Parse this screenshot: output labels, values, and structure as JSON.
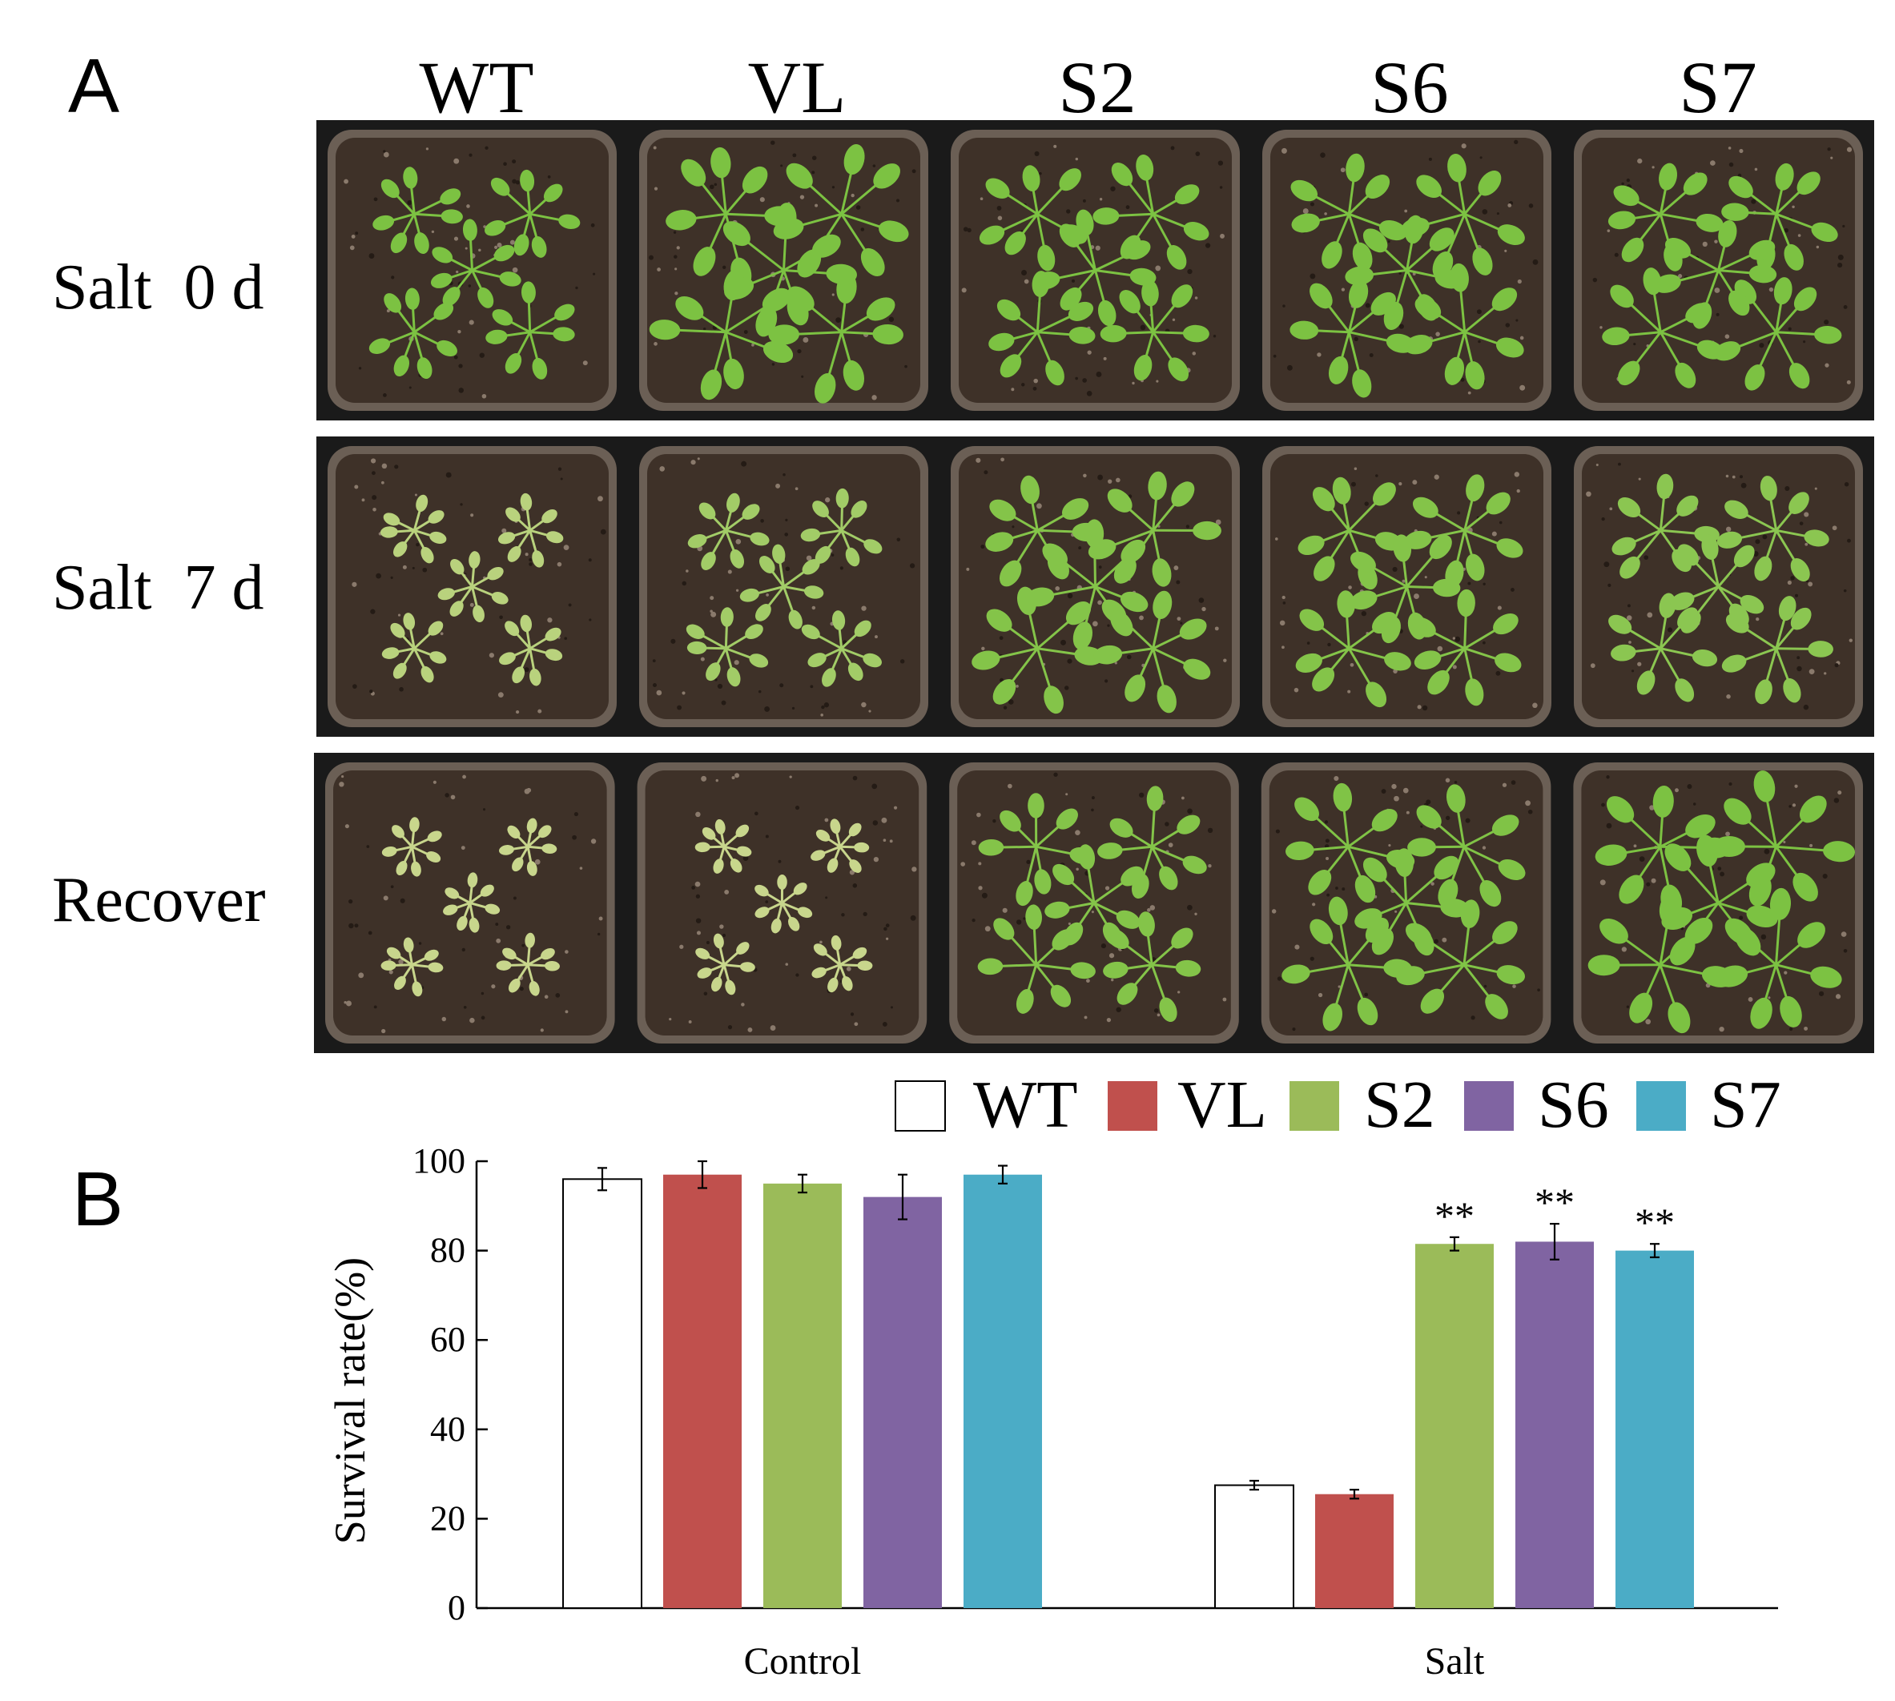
{
  "panel_a": {
    "label": "A",
    "columns": [
      "WT",
      "VL",
      "S2",
      "S6",
      "S7"
    ],
    "rows": [
      "Salt  0 d",
      "Salt  7 d",
      "Recover"
    ]
  },
  "panel_b_label": "B",
  "colors": {
    "WT": "#ffffff",
    "VL": "#c0504d",
    "S2": "#9bbb59",
    "S6": "#8064a2",
    "S7": "#4bacc6",
    "photo_background": "#1a1a1a",
    "soil": "#3e3128",
    "pot_rim": "#6b5f55",
    "leaf_green": "#7cc242",
    "leaf_pale": "#c8d68c"
  },
  "chart_data": {
    "type": "bar",
    "categories": [
      "Control",
      "Salt"
    ],
    "series": [
      {
        "name": "WT",
        "values": [
          96,
          27.5
        ],
        "errors": [
          2.5,
          1.0
        ],
        "markers": [
          "",
          ""
        ]
      },
      {
        "name": "VL",
        "values": [
          97,
          25.5
        ],
        "errors": [
          3.0,
          1.0
        ],
        "markers": [
          "",
          ""
        ]
      },
      {
        "name": "S2",
        "values": [
          95,
          81.5
        ],
        "errors": [
          2.0,
          1.5
        ],
        "markers": [
          "",
          "**"
        ]
      },
      {
        "name": "S6",
        "values": [
          92,
          82
        ],
        "errors": [
          5.0,
          4.0
        ],
        "markers": [
          "",
          "**"
        ]
      },
      {
        "name": "S7",
        "values": [
          97,
          80
        ],
        "errors": [
          2.0,
          1.5
        ],
        "markers": [
          "",
          "**"
        ]
      }
    ],
    "ylabel": "Survival rate(%)",
    "xlabel": "",
    "ylim": [
      0,
      100
    ],
    "yticks": [
      0,
      20,
      40,
      60,
      80,
      100
    ],
    "legend": [
      "WT",
      "VL",
      "S2",
      "S6",
      "S7"
    ],
    "legend_position": "top-right",
    "grid": false
  }
}
